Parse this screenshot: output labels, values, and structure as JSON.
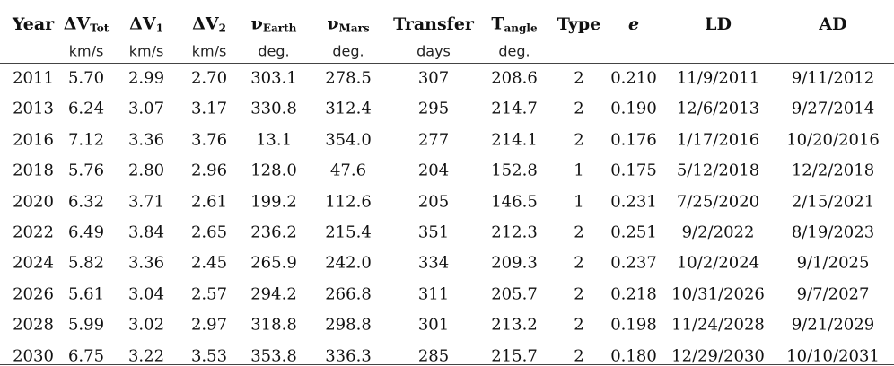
{
  "table": {
    "headers": [
      {
        "main": "Year"
      },
      {
        "main": "ΔV",
        "sub": "Tot"
      },
      {
        "main": "ΔV",
        "sub": "1"
      },
      {
        "main": "ΔV",
        "sub": "2"
      },
      {
        "main": "ν",
        "sub": "Earth"
      },
      {
        "main": "ν",
        "sub": "Mars"
      },
      {
        "main": "Transfer"
      },
      {
        "main": "T",
        "sub": "angle"
      },
      {
        "main": "Type"
      },
      {
        "main": "e"
      },
      {
        "main": "LD"
      },
      {
        "main": "AD"
      }
    ],
    "units": [
      null,
      "km/s",
      "km/s",
      "km/s",
      "deg.",
      "deg.",
      "days",
      "deg.",
      null,
      null,
      null,
      null
    ],
    "rows": [
      [
        "2011",
        "5.70",
        "2.99",
        "2.70",
        "303.1",
        "278.5",
        "307",
        "208.6",
        "2",
        "0.210",
        "11/9/2011",
        "9/11/2012"
      ],
      [
        "2013",
        "6.24",
        "3.07",
        "3.17",
        "330.8",
        "312.4",
        "295",
        "214.7",
        "2",
        "0.190",
        "12/6/2013",
        "9/27/2014"
      ],
      [
        "2016",
        "7.12",
        "3.36",
        "3.76",
        "13.1",
        "354.0",
        "277",
        "214.1",
        "2",
        "0.176",
        "1/17/2016",
        "10/20/2016"
      ],
      [
        "2018",
        "5.76",
        "2.80",
        "2.96",
        "128.0",
        "47.6",
        "204",
        "152.8",
        "1",
        "0.175",
        "5/12/2018",
        "12/2/2018"
      ],
      [
        "2020",
        "6.32",
        "3.71",
        "2.61",
        "199.2",
        "112.6",
        "205",
        "146.5",
        "1",
        "0.231",
        "7/25/2020",
        "2/15/2021"
      ],
      [
        "2022",
        "6.49",
        "3.84",
        "2.65",
        "236.2",
        "215.4",
        "351",
        "212.3",
        "2",
        "0.251",
        "9/2/2022",
        "8/19/2023"
      ],
      [
        "2024",
        "5.82",
        "3.36",
        "2.45",
        "265.9",
        "242.0",
        "334",
        "209.3",
        "2",
        "0.237",
        "10/2/2024",
        "9/1/2025"
      ],
      [
        "2026",
        "5.61",
        "3.04",
        "2.57",
        "294.2",
        "266.8",
        "311",
        "205.7",
        "2",
        "0.218",
        "10/31/2026",
        "9/7/2027"
      ],
      [
        "2028",
        "5.99",
        "3.02",
        "2.97",
        "318.8",
        "298.8",
        "301",
        "213.2",
        "2",
        "0.198",
        "11/24/2028",
        "9/21/2029"
      ],
      [
        "2030",
        "6.75",
        "3.22",
        "3.53",
        "353.8",
        "336.3",
        "285",
        "215.7",
        "2",
        "0.180",
        "12/29/2030",
        "10/10/2031"
      ]
    ]
  }
}
